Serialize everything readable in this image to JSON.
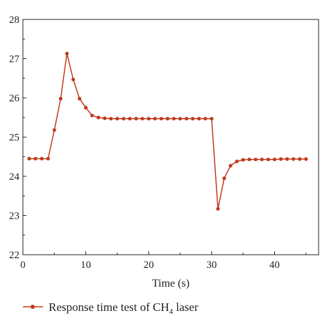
{
  "chart_data": {
    "type": "line",
    "xlabel": "Time (s)",
    "ylabel": "",
    "xlim": [
      0,
      47
    ],
    "ylim": [
      22,
      28
    ],
    "x_ticks": [
      0,
      10,
      20,
      30,
      40
    ],
    "y_ticks": [
      22,
      23,
      24,
      25,
      26,
      27,
      28
    ],
    "grid": false,
    "legend_position": "bottom-left",
    "series": [
      {
        "name": "Response time test of CH4 laser",
        "legend_parts": {
          "before": "Response time test of CH",
          "sub": "4",
          "after": " laser"
        },
        "color": "#c0391b",
        "x": [
          1,
          2,
          3,
          4,
          5,
          6,
          7,
          8,
          9,
          10,
          11,
          12,
          13,
          14,
          15,
          16,
          17,
          18,
          19,
          20,
          21,
          22,
          23,
          24,
          25,
          26,
          27,
          28,
          29,
          30,
          31,
          32,
          33,
          34,
          35,
          36,
          37,
          38,
          39,
          40,
          41,
          42,
          43,
          44,
          45
        ],
        "y": [
          24.45,
          24.45,
          24.45,
          24.45,
          25.18,
          25.98,
          27.13,
          26.47,
          25.98,
          25.75,
          25.55,
          25.5,
          25.48,
          25.47,
          25.47,
          25.47,
          25.47,
          25.47,
          25.47,
          25.47,
          25.47,
          25.47,
          25.47,
          25.47,
          25.47,
          25.47,
          25.47,
          25.47,
          25.47,
          25.47,
          23.17,
          23.95,
          24.27,
          24.38,
          24.42,
          24.43,
          24.43,
          24.43,
          24.43,
          24.43,
          24.44,
          24.44,
          24.44,
          24.44,
          24.44
        ]
      }
    ]
  }
}
